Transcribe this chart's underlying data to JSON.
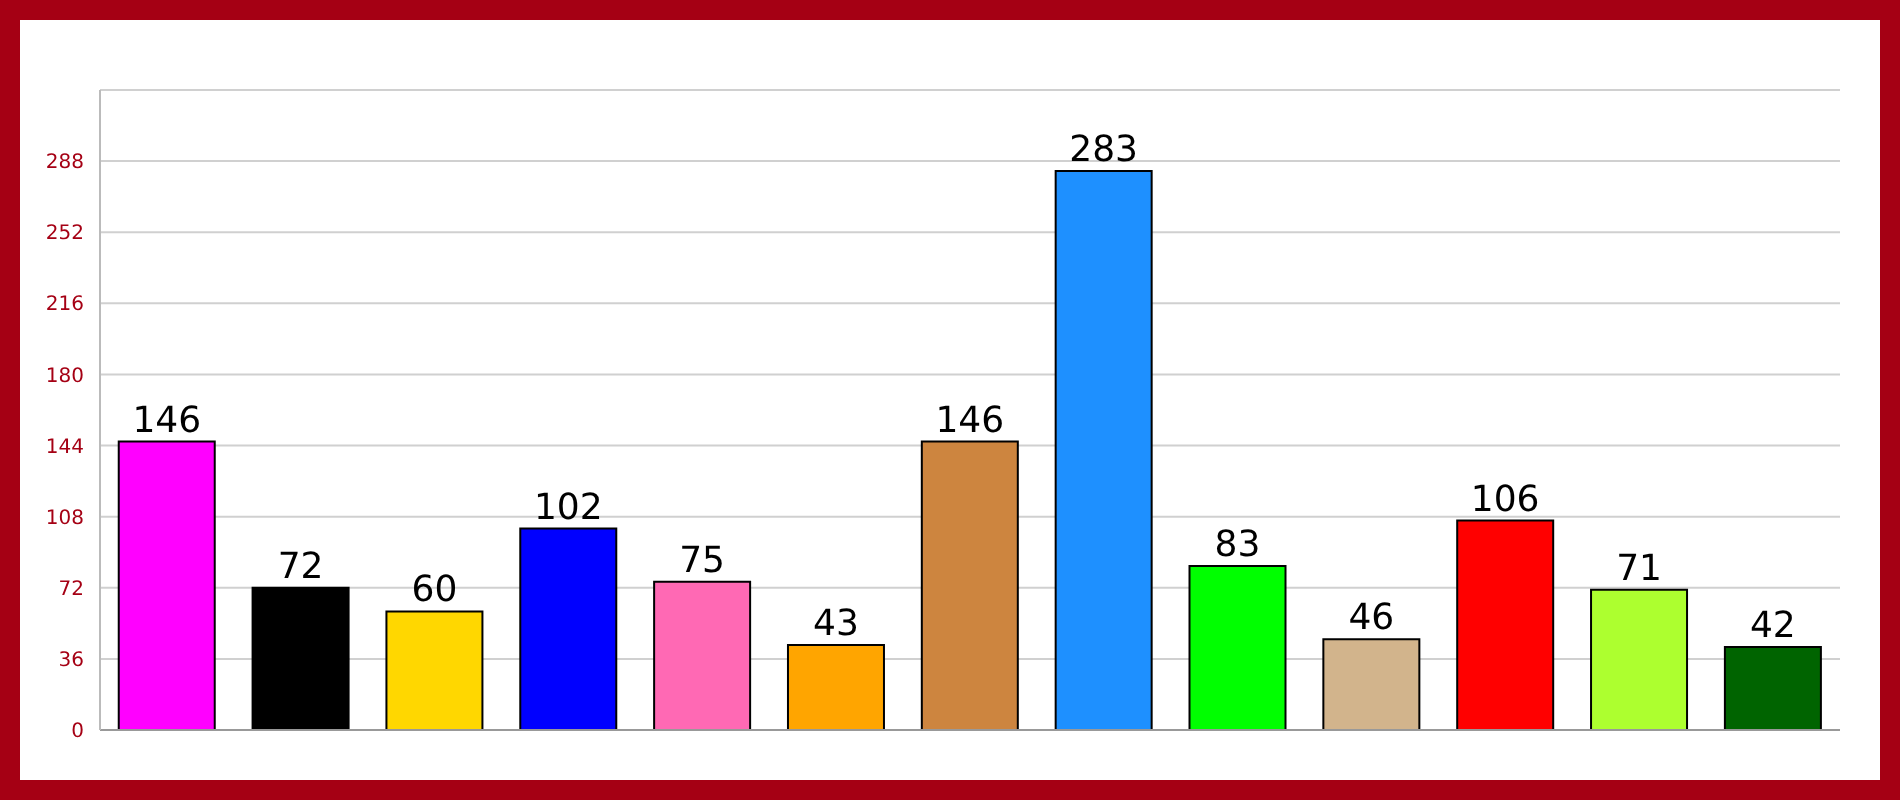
{
  "chart_data": {
    "type": "bar",
    "categories": [
      null,
      null,
      null,
      null,
      null,
      null,
      null,
      null,
      null,
      null,
      null,
      null,
      null
    ],
    "values": [
      146,
      72,
      60,
      102,
      75,
      43,
      146,
      283,
      83,
      46,
      106,
      71,
      42
    ],
    "colors": [
      "#ff00ff",
      "#000000",
      "#ffd700",
      "#0000ff",
      "#ff69b4",
      "#ffa500",
      "#cd853f",
      "#1e90ff",
      "#00ff00",
      "#d2b48c",
      "#ff0000",
      "#adff2f",
      "#006400"
    ],
    "ylim": [
      0,
      324
    ],
    "yticks": [
      0,
      36,
      72,
      108,
      144,
      180,
      216,
      252,
      288
    ],
    "grid": "y",
    "data_labels": true
  }
}
